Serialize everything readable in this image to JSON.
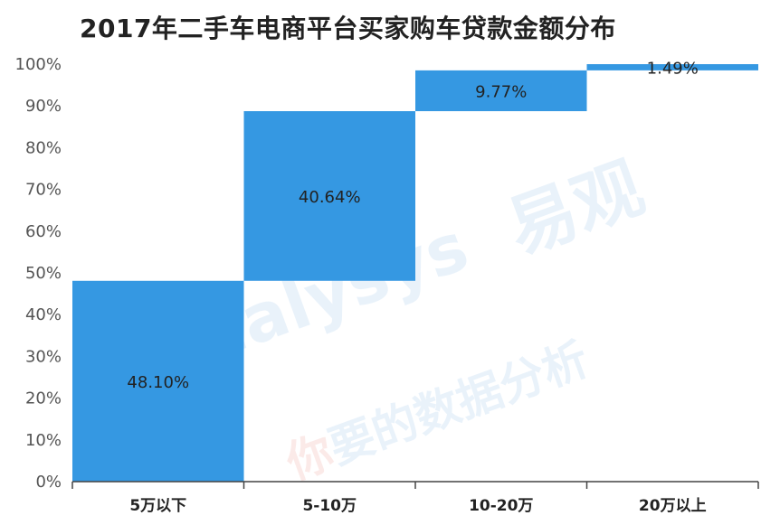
{
  "chart_data": {
    "type": "bar",
    "title": "2017年二手车电商平台买家购车贷款金额分布",
    "categories": [
      "5万以下",
      "5-10万",
      "10-20万",
      "20万以上"
    ],
    "values": [
      48.1,
      40.64,
      9.77,
      1.49
    ],
    "data_labels": [
      "48.10%",
      "40.64%",
      "9.77%",
      "1.49%"
    ],
    "ylim": [
      0,
      100
    ],
    "y_ticks": [
      "0%",
      "10%",
      "20%",
      "30%",
      "40%",
      "50%",
      "60%",
      "70%",
      "80%",
      "90%",
      "100%"
    ],
    "xlabel": "",
    "ylabel": "",
    "bar_color": "#3598e2",
    "grid": false
  },
  "watermark": {
    "brand_latin": "analysys",
    "brand_cn": "易观",
    "tagline_red": "你",
    "tagline_rest": "要的数据分析"
  }
}
